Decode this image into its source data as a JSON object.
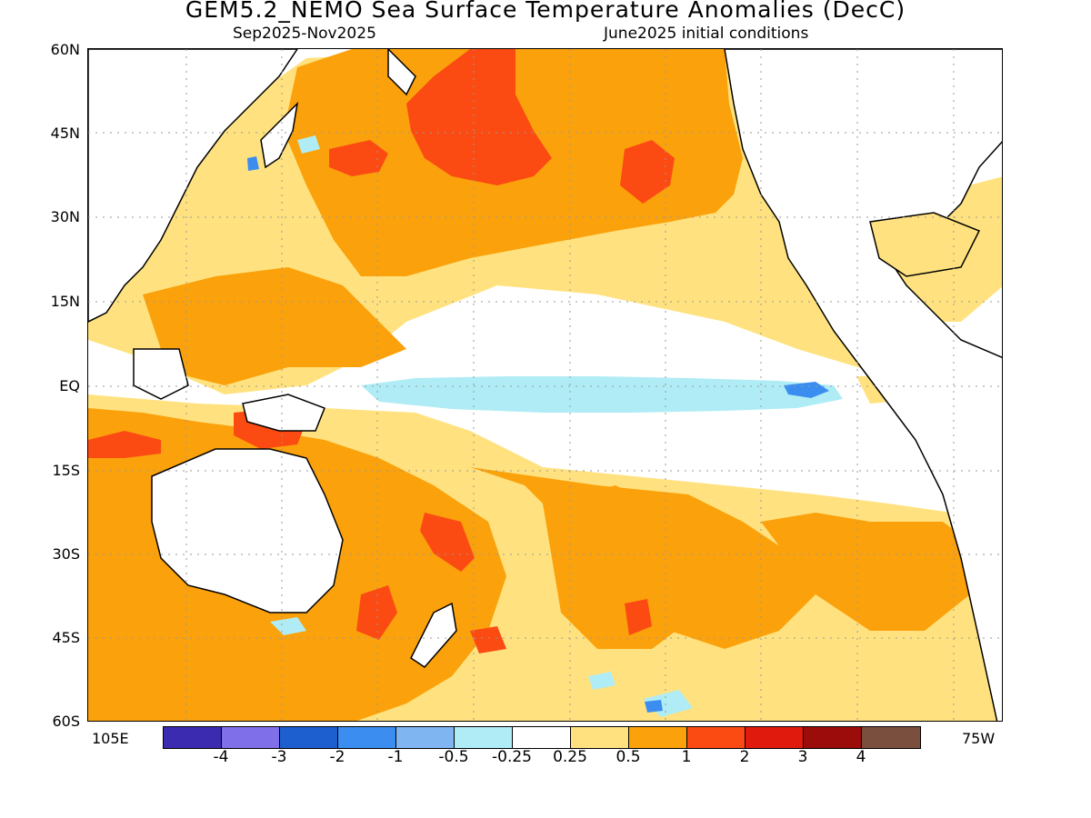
{
  "title": "GEM5.2_NEMO Sea Surface Temperature Anomalies (DecC)",
  "period": "Sep2025-Nov2025",
  "init": "June2025 initial conditions",
  "lat_labels": [
    "60N",
    "45N",
    "30N",
    "15N",
    "EQ",
    "15S",
    "30S",
    "45S",
    "60S"
  ],
  "lon_labels": {
    "left": "105E",
    "right": "75W"
  },
  "legend": {
    "colors": [
      "#3a2bb0",
      "#7f6fe8",
      "#1d5fcf",
      "#3b8ef0",
      "#7fb6f2",
      "#b0ecf5",
      "#ffffff",
      "#ffe27f",
      "#fba10b",
      "#fb4b13",
      "#e01a0c",
      "#9b0c0a",
      "#7a4f3e"
    ],
    "labels": [
      "-4",
      "-3",
      "-2",
      "-1",
      "-0.5",
      "-0.25",
      "0.25",
      "0.5",
      "1",
      "2",
      "3",
      "4"
    ]
  },
  "colors": {
    "warm_light": "#ffe27f",
    "warm": "#fba10b",
    "warm_strong": "#fb4b13",
    "cool_light": "#b0ecf5",
    "cool": "#3b8ef0"
  }
}
